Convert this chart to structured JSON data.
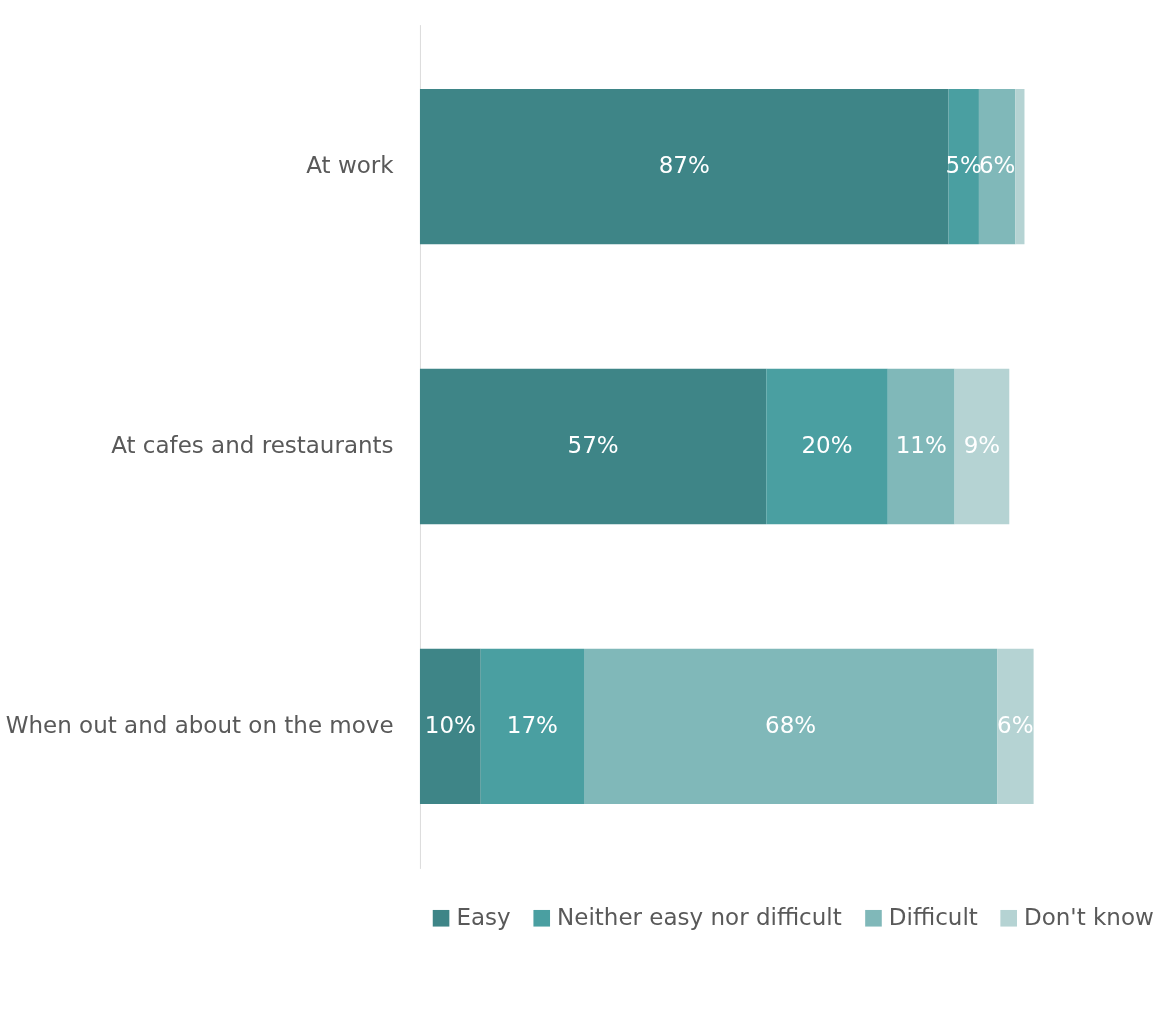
{
  "chart_data": {
    "type": "bar",
    "orientation": "horizontal",
    "stacked": true,
    "categories": [
      "At work",
      "At cafes and restaurants",
      "When out and about on the move"
    ],
    "series": [
      {
        "name": "Easy",
        "color": "#3e8587",
        "values": [
          87,
          57,
          10
        ],
        "value_labels": [
          "87%",
          "57%",
          "10%"
        ]
      },
      {
        "name": "Neither easy nor difficult",
        "color": "#4a9fa1",
        "values": [
          5,
          20,
          17
        ],
        "value_labels": [
          "5%",
          "20%",
          "17%"
        ]
      },
      {
        "name": "Difficult",
        "color": "#80b8b9",
        "values": [
          6,
          11,
          68
        ],
        "value_labels": [
          "6%",
          "11%",
          "68%"
        ]
      },
      {
        "name": "Don't know",
        "color": "#b5d3d3",
        "values": [
          1.5,
          9,
          6
        ],
        "value_labels": [
          null,
          "9%",
          "6%"
        ]
      }
    ],
    "legend": "bottom"
  }
}
